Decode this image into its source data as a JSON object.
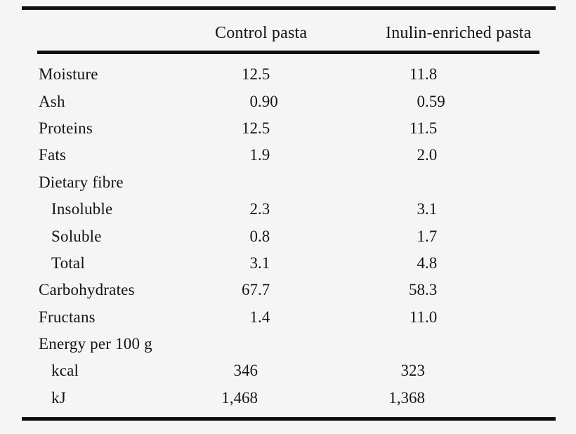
{
  "table": {
    "columns": {
      "row_label": "",
      "control": "Control pasta",
      "inulin": "Inulin-enriched pasta"
    },
    "rows": [
      {
        "label": "Moisture",
        "indent": false,
        "control": "12.5",
        "inulin": "11.8"
      },
      {
        "label": "Ash",
        "indent": false,
        "control": "0.90",
        "inulin": "0.59"
      },
      {
        "label": "Proteins",
        "indent": false,
        "control": "12.5",
        "inulin": "11.5"
      },
      {
        "label": "Fats",
        "indent": false,
        "control": "1.9",
        "inulin": "2.0"
      },
      {
        "label": "Dietary fibre",
        "indent": false,
        "control": "",
        "inulin": ""
      },
      {
        "label": "Insoluble",
        "indent": true,
        "control": "2.3",
        "inulin": "3.1"
      },
      {
        "label": "Soluble",
        "indent": true,
        "control": "0.8",
        "inulin": "1.7"
      },
      {
        "label": "Total",
        "indent": true,
        "control": "3.1",
        "inulin": "4.8"
      },
      {
        "label": "Carbohydrates",
        "indent": false,
        "control": "67.7",
        "inulin": "58.3"
      },
      {
        "label": "Fructans",
        "indent": false,
        "control": "1.4",
        "inulin": "11.0"
      },
      {
        "label": "Energy per 100 g",
        "indent": false,
        "control": "",
        "inulin": ""
      },
      {
        "label": "kcal",
        "indent": true,
        "control": "346",
        "inulin": "323"
      },
      {
        "label": "kJ",
        "indent": true,
        "control": "1,468",
        "inulin": "1,368"
      }
    ]
  },
  "colors": {
    "background": "#f5f5f6",
    "text": "#141414",
    "rule": "#0d0d0d"
  }
}
